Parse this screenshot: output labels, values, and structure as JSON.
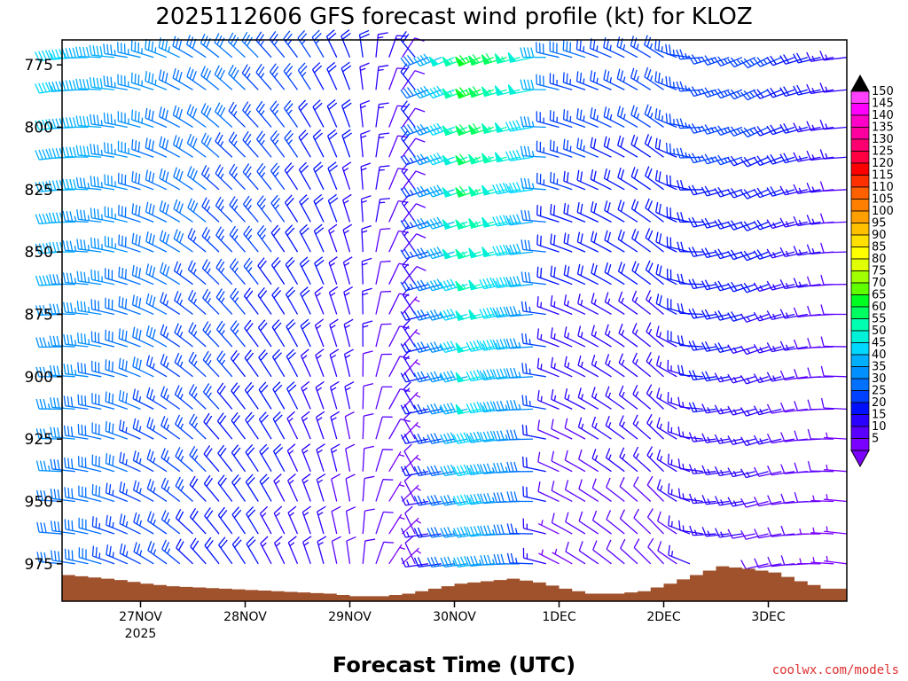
{
  "chart_data": {
    "type": "wind_barb_profile",
    "title": "2025112606 GFS forecast wind profile (kt) for KLOZ",
    "xlabel": "Forecast Time (UTC)",
    "credit": "coolwx.com/models",
    "units": "kt",
    "y_axis": {
      "reversed": true,
      "ylim": [
        990,
        765
      ],
      "ticks": [
        775,
        800,
        825,
        850,
        875,
        900,
        925,
        950,
        975
      ],
      "labels": [
        "775",
        "800",
        "825",
        "850",
        "875",
        "900",
        "925",
        "950",
        "975"
      ]
    },
    "x_axis": {
      "xlim": [
        "2025-11-26T06",
        "2025-12-03T18"
      ],
      "ticks": [
        {
          "time": "2025-11-27T00",
          "label": "27NOV",
          "sublabel": "2025"
        },
        {
          "time": "2025-11-28T00",
          "label": "28NOV",
          "sublabel": ""
        },
        {
          "time": "2025-11-29T00",
          "label": "29NOV",
          "sublabel": ""
        },
        {
          "time": "2025-11-30T00",
          "label": "30NOV",
          "sublabel": ""
        },
        {
          "time": "2025-12-01T00",
          "label": "1DEC",
          "sublabel": ""
        },
        {
          "time": "2025-12-02T00",
          "label": "2DEC",
          "sublabel": ""
        },
        {
          "time": "2025-12-03T00",
          "label": "3DEC",
          "sublabel": ""
        }
      ]
    },
    "colorbar": {
      "values": [
        5,
        10,
        15,
        20,
        25,
        30,
        35,
        40,
        45,
        50,
        55,
        60,
        65,
        70,
        75,
        80,
        85,
        90,
        95,
        100,
        105,
        110,
        115,
        120,
        125,
        130,
        135,
        140,
        145,
        150
      ],
      "labels": [
        "5",
        "10",
        "15",
        "20",
        "25",
        "30",
        "35",
        "40",
        "45",
        "50",
        "55",
        "60",
        "65",
        "70",
        "75",
        "80",
        "85",
        "90",
        "95",
        "100",
        "105",
        "110",
        "115",
        "120",
        "125",
        "130",
        "135",
        "140",
        "145",
        "150"
      ],
      "colors": [
        "#7a00ff",
        "#5a00ff",
        "#2a00ff",
        "#0010ff",
        "#0040ff",
        "#0070ff",
        "#0090ff",
        "#00b0ff",
        "#00d8ff",
        "#00f0d8",
        "#00ffb0",
        "#00ff60",
        "#00ff20",
        "#60ff00",
        "#a0ff00",
        "#e0ff00",
        "#ffff00",
        "#ffe000",
        "#ffc000",
        "#ffa000",
        "#ff8000",
        "#ff6000",
        "#ff3000",
        "#ff0000",
        "#ff0040",
        "#ff0070",
        "#ff00a0",
        "#ff00c8",
        "#ff00ff",
        "#ff40ff"
      ],
      "extend": "both"
    },
    "terrain": {
      "color": "#a0522d",
      "surface_pressure": [
        {
          "t": "2025-11-26T06",
          "p": 979.5
        },
        {
          "t": "2025-11-26T12",
          "p": 980.5
        },
        {
          "t": "2025-11-26T18",
          "p": 981.5
        },
        {
          "t": "2025-11-27T00",
          "p": 983
        },
        {
          "t": "2025-11-27T06",
          "p": 984
        },
        {
          "t": "2025-11-27T12",
          "p": 984.5
        },
        {
          "t": "2025-11-27T18",
          "p": 985
        },
        {
          "t": "2025-11-28T00",
          "p": 985.5
        },
        {
          "t": "2025-11-28T06",
          "p": 986
        },
        {
          "t": "2025-11-28T12",
          "p": 986.5
        },
        {
          "t": "2025-11-28T18",
          "p": 987
        },
        {
          "t": "2025-11-29T00",
          "p": 988
        },
        {
          "t": "2025-11-29T06",
          "p": 988
        },
        {
          "t": "2025-11-29T12",
          "p": 987
        },
        {
          "t": "2025-11-29T18",
          "p": 985
        },
        {
          "t": "2025-11-30T00",
          "p": 983
        },
        {
          "t": "2025-11-30T06",
          "p": 982
        },
        {
          "t": "2025-11-30T12",
          "p": 981
        },
        {
          "t": "2025-11-30T18",
          "p": 982.5
        },
        {
          "t": "2025-12-01T00",
          "p": 985
        },
        {
          "t": "2025-12-01T06",
          "p": 987
        },
        {
          "t": "2025-12-01T12",
          "p": 987
        },
        {
          "t": "2025-12-01T18",
          "p": 986
        },
        {
          "t": "2025-12-02T00",
          "p": 983
        },
        {
          "t": "2025-12-02T06",
          "p": 979.5
        },
        {
          "t": "2025-12-02T12",
          "p": 976
        },
        {
          "t": "2025-12-02T18",
          "p": 977
        },
        {
          "t": "2025-12-03T00",
          "p": 978.5
        },
        {
          "t": "2025-12-03T06",
          "p": 982
        },
        {
          "t": "2025-12-03T12",
          "p": 985
        },
        {
          "t": "2025-12-03T18",
          "p": 985
        }
      ]
    },
    "barb_pressures": [
      772,
      785,
      800,
      812,
      825,
      838,
      850,
      863,
      875,
      888,
      900,
      913,
      925,
      938,
      950,
      963,
      975
    ],
    "barb_times_every_hours": 3,
    "wind_regimes": [
      {
        "t": "2025-11-26T06",
        "dir": 268,
        "spd_low": 30,
        "spd_high": 45
      },
      {
        "t": "2025-11-27T00",
        "dir": 290,
        "spd_low": 25,
        "spd_high": 35
      },
      {
        "t": "2025-11-27T18",
        "dir": 315,
        "spd_low": 20,
        "spd_high": 30
      },
      {
        "t": "2025-11-28T12",
        "dir": 330,
        "spd_low": 15,
        "spd_high": 25
      },
      {
        "t": "2025-11-29T00",
        "dir": 345,
        "spd_low": 10,
        "spd_high": 20
      },
      {
        "t": "2025-11-29T12",
        "dir": 40,
        "spd_low": 5,
        "spd_high": 10
      },
      {
        "t": "2025-11-29T18",
        "dir": 255,
        "spd_low": 15,
        "spd_high": 30
      },
      {
        "t": "2025-11-30T06",
        "dir": 255,
        "spd_low": 40,
        "spd_high": 65
      },
      {
        "t": "2025-11-30T18",
        "dir": 265,
        "spd_low": 25,
        "spd_high": 50
      },
      {
        "t": "2025-12-01T00",
        "dir": 290,
        "spd_low": 5,
        "spd_high": 30
      },
      {
        "t": "2025-12-01T12",
        "dir": 300,
        "spd_low": 10,
        "spd_high": 25
      },
      {
        "t": "2025-12-02T00",
        "dir": 310,
        "spd_low": 10,
        "spd_high": 25
      },
      {
        "t": "2025-12-02T12",
        "dir": 260,
        "spd_low": 15,
        "spd_high": 25
      },
      {
        "t": "2025-12-03T00",
        "dir": 250,
        "spd_low": 10,
        "spd_high": 25
      },
      {
        "t": "2025-12-03T18",
        "dir": 270,
        "spd_low": 5,
        "spd_high": 15
      }
    ]
  }
}
